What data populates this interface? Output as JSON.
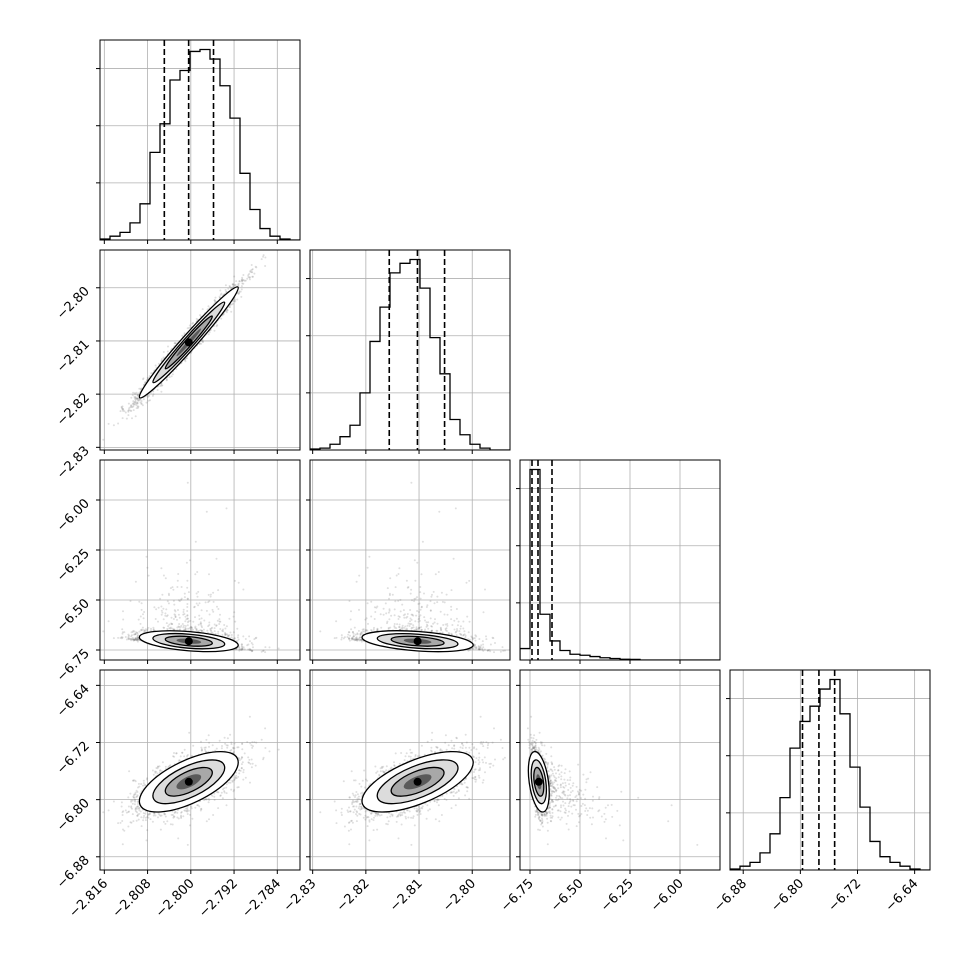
{
  "chart_data": {
    "type": "scatter",
    "kind": "corner-plot",
    "grid": true,
    "parameters": [
      {
        "range": [
          -2.8168,
          -2.7798
        ],
        "ticks": [
          -2.816,
          -2.808,
          -2.8,
          -2.792,
          -2.784
        ],
        "tick_labels": [
          "−2.816",
          "−2.808",
          "−2.800",
          "−2.792",
          "−2.784"
        ]
      },
      {
        "range": [
          -2.8305,
          -2.7929
        ],
        "ticks": [
          -2.83,
          -2.82,
          -2.81,
          -2.8
        ],
        "tick_labels": [
          "−2.83",
          "−2.82",
          "−2.81",
          "−2.80"
        ]
      },
      {
        "range": [
          -6.8,
          -5.8
        ],
        "ticks": [
          -6.75,
          -6.5,
          -6.25,
          -6.0
        ],
        "tick_labels": [
          "−6.75",
          "−6.50",
          "−6.25",
          "−6.00"
        ]
      },
      {
        "range": [
          -6.8985,
          -6.6185
        ],
        "ticks": [
          -6.88,
          -6.8,
          -6.72,
          -6.64
        ],
        "tick_labels": [
          "−6.88",
          "−6.80",
          "−6.72",
          "−6.64"
        ]
      }
    ],
    "quantiles": [
      [
        -2.8049,
        -2.8004,
        -2.7958
      ],
      [
        -2.8156,
        -2.8103,
        -2.8052
      ],
      [
        -6.74,
        -6.71,
        -6.64
      ],
      [
        -6.797,
        -6.774,
        -6.752
      ]
    ],
    "histograms": [
      [
        0.005,
        0.02,
        0.04,
        0.09,
        0.19,
        0.46,
        0.61,
        0.84,
        0.89,
        0.99,
        1.0,
        0.95,
        0.81,
        0.64,
        0.35,
        0.16,
        0.06,
        0.02,
        0.005,
        0
      ],
      [
        0.005,
        0.01,
        0.03,
        0.07,
        0.13,
        0.3,
        0.57,
        0.75,
        0.93,
        0.98,
        1.0,
        0.85,
        0.59,
        0.4,
        0.16,
        0.08,
        0.03,
        0.01,
        0,
        0
      ],
      [
        0.06,
        1.0,
        0.24,
        0.1,
        0.05,
        0.03,
        0.025,
        0.018,
        0.012,
        0.008,
        0.004,
        0.003,
        0,
        0,
        0,
        0,
        0,
        0,
        0,
        0
      ],
      [
        0.005,
        0.02,
        0.04,
        0.09,
        0.19,
        0.38,
        0.64,
        0.78,
        0.86,
        0.95,
        1.0,
        0.82,
        0.54,
        0.33,
        0.15,
        0.07,
        0.04,
        0.02,
        0.005,
        0
      ]
    ],
    "correlations": [
      [
        1,
        0.98,
        -0.15,
        0.55
      ],
      [
        0.98,
        1,
        -0.15,
        0.55
      ],
      [
        -0.15,
        -0.15,
        1,
        -0.45
      ],
      [
        0.55,
        0.55,
        -0.45,
        1
      ]
    ]
  }
}
